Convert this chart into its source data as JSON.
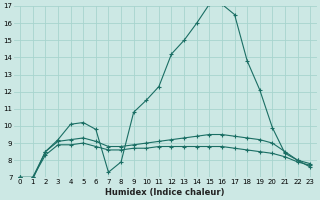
{
  "xlabel": "Humidex (Indice chaleur)",
  "bg_color": "#cce8e4",
  "grid_color": "#a8d4ce",
  "line_color": "#1a6e64",
  "series1_y": [
    7.0,
    6.9,
    8.5,
    9.2,
    10.1,
    10.2,
    9.8,
    7.3,
    7.9,
    10.8,
    11.5,
    12.3,
    14.2,
    15.0,
    16.0,
    17.1,
    17.1,
    16.5,
    13.8,
    12.1,
    9.9,
    8.4,
    8.0,
    7.6
  ],
  "series2_y": [
    7.0,
    7.0,
    8.5,
    9.1,
    9.2,
    9.3,
    9.1,
    8.8,
    8.8,
    8.9,
    9.0,
    9.1,
    9.2,
    9.3,
    9.4,
    9.5,
    9.5,
    9.4,
    9.3,
    9.2,
    9.0,
    8.5,
    8.0,
    7.8
  ],
  "series3_y": [
    7.0,
    7.0,
    8.3,
    8.9,
    8.9,
    9.0,
    8.8,
    8.6,
    8.6,
    8.7,
    8.7,
    8.8,
    8.8,
    8.8,
    8.8,
    8.8,
    8.8,
    8.7,
    8.6,
    8.5,
    8.4,
    8.2,
    7.9,
    7.7
  ],
  "xlim": [
    -0.5,
    23.5
  ],
  "ylim": [
    7,
    17
  ],
  "yticks": [
    7,
    8,
    9,
    10,
    11,
    12,
    13,
    14,
    15,
    16,
    17
  ],
  "xticks": [
    0,
    1,
    2,
    3,
    4,
    5,
    6,
    7,
    8,
    9,
    10,
    11,
    12,
    13,
    14,
    15,
    16,
    17,
    18,
    19,
    20,
    21,
    22,
    23
  ],
  "tick_fontsize": 5.0,
  "xlabel_fontsize": 6.0
}
